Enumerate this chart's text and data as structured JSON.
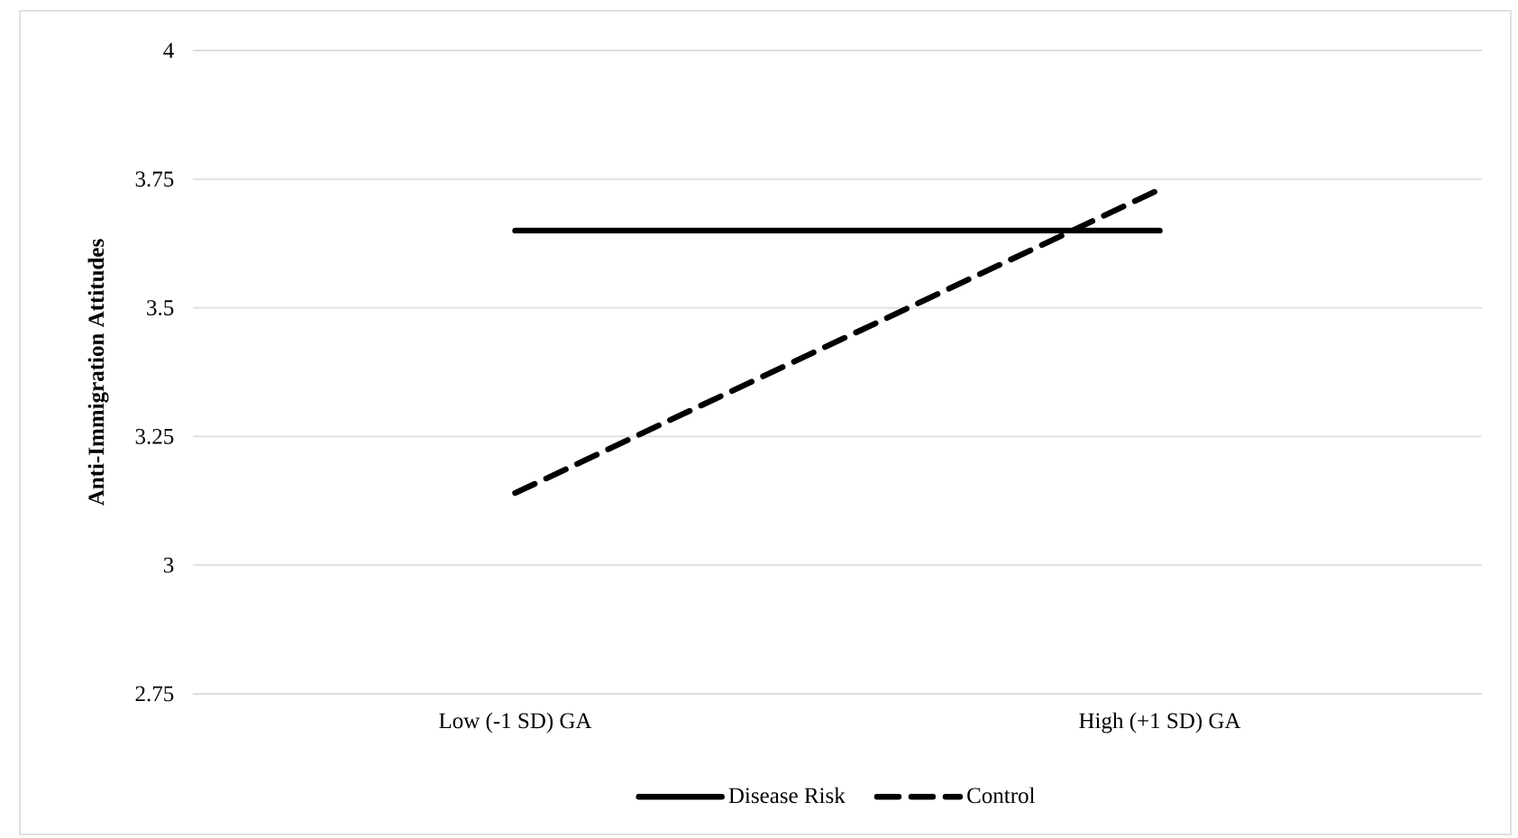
{
  "chart_data": {
    "type": "line",
    "ylabel": "Anti-Immigration Attitudes",
    "categories": [
      "Low (-1 SD) GA",
      "High (+1 SD) GA"
    ],
    "series": [
      {
        "name": "Disease Risk",
        "color": "#000000",
        "line_style": "solid",
        "values": [
          3.65,
          3.65
        ]
      },
      {
        "name": "Control",
        "color": "#000000",
        "line_style": "dashed",
        "values": [
          3.14,
          3.73
        ]
      }
    ],
    "ylim": [
      2.75,
      4
    ],
    "yticks": [
      2.75,
      3,
      3.25,
      3.5,
      3.75,
      4
    ],
    "grid": "y",
    "legend": "bottom"
  }
}
